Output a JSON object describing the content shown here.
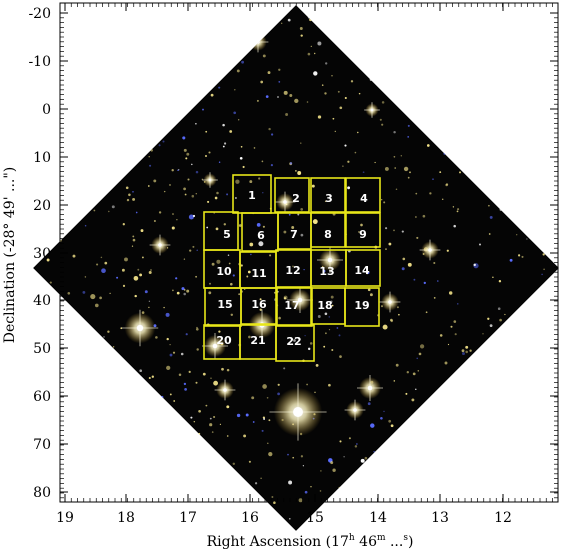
{
  "axes": {
    "xlabel": "Right Ascension (17",
    "xlabel_sup1": "h",
    "xlabel_mid": " 46",
    "xlabel_sup2": "m",
    "xlabel_end": " ...",
    "xlabel_sup3": "s",
    "xlabel_close": ")",
    "ylabel": "Declination (-28° 49' ...\")",
    "xticks": [
      "19",
      "18",
      "17",
      "16",
      "15",
      "14",
      "13",
      "12"
    ],
    "yticks": [
      "-20",
      "-10",
      "0",
      "10",
      "20",
      "30",
      "40",
      "50",
      "60",
      "70",
      "80"
    ]
  },
  "fields": {
    "labels": [
      "1",
      "2",
      "3",
      "4",
      "5",
      "6",
      "7",
      "8",
      "9",
      "10",
      "11",
      "12",
      "13",
      "14",
      "15",
      "16",
      "17",
      "18",
      "19",
      "20",
      "21",
      "22"
    ]
  },
  "colors": {
    "sky": "#050505",
    "field_box": "#e8e619",
    "star_yellow": "#f4e48a",
    "star_blue": "#5a6cff",
    "star_white": "#ffffff"
  }
}
